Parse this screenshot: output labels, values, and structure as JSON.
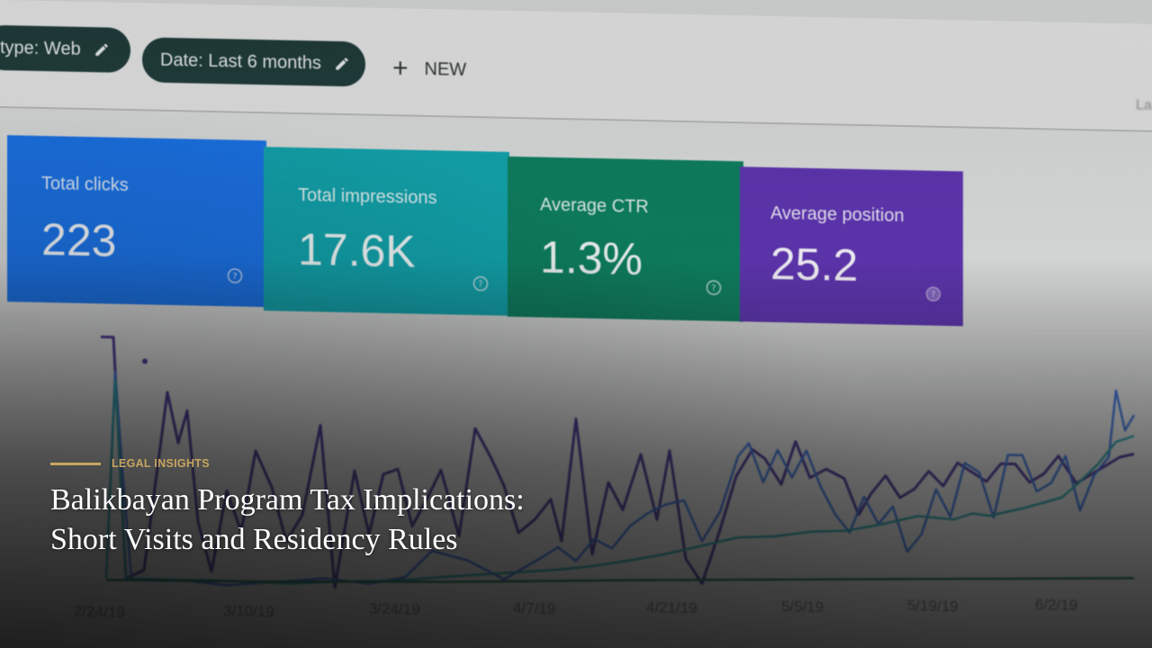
{
  "photo": {
    "filters": {
      "type_chip_label": "type: Web",
      "date_chip_label": "Date: Last 6 months",
      "new_button_label": "NEW",
      "edge_text": "La"
    },
    "metrics": [
      {
        "label": "Total clicks",
        "value": "223",
        "color": "#1a73e8"
      },
      {
        "label": "Total impressions",
        "value": "17.6K",
        "color": "#12a4ad"
      },
      {
        "label": "Average CTR",
        "value": "1.3%",
        "color": "#0d7f5f"
      },
      {
        "label": "Average position",
        "value": "25.2",
        "color": "#5e35b1"
      }
    ],
    "x_ticks": [
      "2/24/19",
      "3/10/19",
      "3/24/19",
      "4/7/19",
      "4/21/19",
      "5/5/19",
      "5/19/19",
      "6/2/19"
    ],
    "line_colors": {
      "clicks": "#3b6fd1",
      "impressions": "#2a9aa0",
      "ctr": "#1f6f52",
      "position": "#4a3591"
    }
  },
  "article": {
    "category": "LEGAL INSIGHTS",
    "title_line_1": "Balikbayan Program Tax Implications:",
    "title_line_2": "Short Visits and Residency Rules",
    "accent_color": "#c7a560"
  }
}
